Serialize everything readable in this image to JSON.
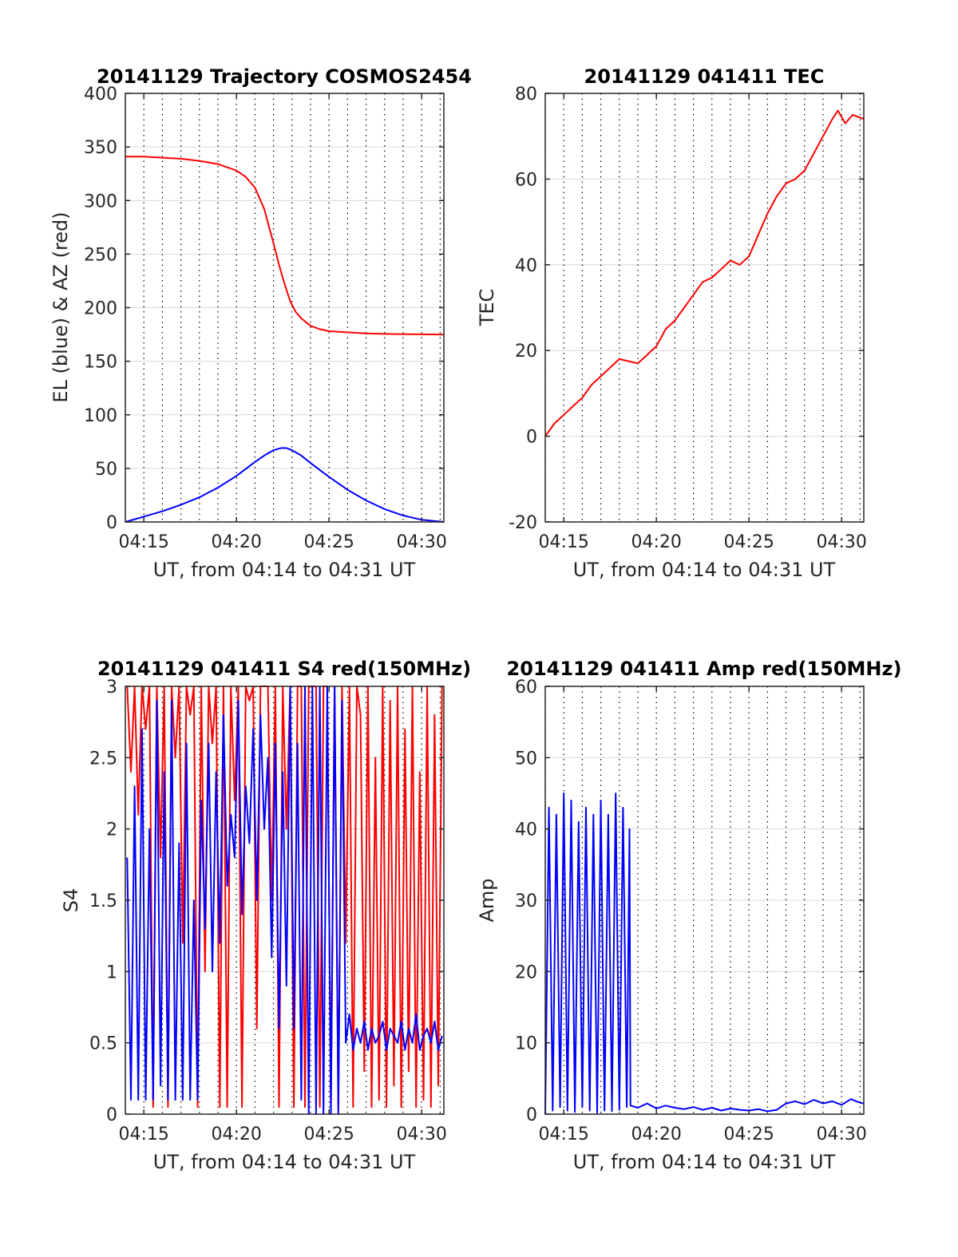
{
  "figure": {
    "background": "#ffffff",
    "colors": {
      "red": "#ff0000",
      "blue": "#0000ff",
      "grid": "#000000",
      "axis": "#262626"
    }
  },
  "chart_data": [
    {
      "id": "trajectory",
      "type": "line",
      "title": "20141129 Trajectory COSMOS2454",
      "xlabel": "UT, from 04:14 to 04:31 UT",
      "ylabel": "EL (blue) & AZ (red)",
      "xlim": [
        14.0,
        31.2
      ],
      "ylim": [
        0,
        400
      ],
      "xticks": [
        15,
        20,
        25,
        30
      ],
      "xticklabels": [
        "04:15",
        "04:20",
        "04:25",
        "04:30"
      ],
      "yticks": [
        0,
        50,
        100,
        150,
        200,
        250,
        300,
        350,
        400
      ],
      "yticklabels": [
        "0",
        "50",
        "100",
        "150",
        "200",
        "250",
        "300",
        "350",
        "400"
      ],
      "grid": "minute dotted vertical lines; horizontal gridlines at y ticks",
      "series": [
        {
          "color": "#ff0000",
          "x": [
            14.0,
            15.0,
            16.0,
            17.0,
            18.0,
            19.0,
            20.0,
            20.5,
            21.0,
            21.5,
            22.0,
            22.3,
            22.6,
            22.9,
            23.2,
            23.5,
            24.0,
            24.5,
            25.0,
            26.0,
            27.0,
            28.0,
            29.0,
            30.0,
            31.2
          ],
          "y": [
            341,
            341,
            340,
            339,
            337,
            334,
            328,
            322,
            312,
            292,
            260,
            240,
            222,
            206,
            196,
            190,
            183,
            180,
            178,
            177,
            176,
            175.5,
            175.3,
            175.1,
            175
          ]
        },
        {
          "color": "#0000ff",
          "x": [
            14.0,
            15.0,
            16.0,
            17.0,
            18.0,
            19.0,
            20.0,
            21.0,
            21.5,
            22.0,
            22.4,
            22.7,
            23.0,
            23.5,
            24.0,
            25.0,
            26.0,
            27.0,
            28.0,
            29.0,
            30.0,
            31.2
          ],
          "y": [
            0,
            5,
            10,
            16,
            23,
            32,
            43,
            56,
            62,
            67,
            69,
            69,
            67,
            62,
            55,
            42,
            30,
            20,
            12,
            6,
            2,
            0
          ]
        }
      ]
    },
    {
      "id": "tec",
      "type": "line",
      "title": "20141129 041411 TEC",
      "xlabel": "UT, from 04:14 to 04:31 UT",
      "ylabel": "TEC",
      "xlim": [
        14.0,
        31.2
      ],
      "ylim": [
        -20,
        80
      ],
      "xticks": [
        15,
        20,
        25,
        30
      ],
      "xticklabels": [
        "04:15",
        "04:20",
        "04:25",
        "04:30"
      ],
      "yticks": [
        -20,
        0,
        20,
        40,
        60,
        80
      ],
      "yticklabels": [
        "-20",
        "0",
        "20",
        "40",
        "60",
        "80"
      ],
      "grid": "minute dotted vertical lines; horizontal gridlines at y ticks",
      "series": [
        {
          "color": "#ff0000",
          "x": [
            14.0,
            14.5,
            15.0,
            15.5,
            16.0,
            16.5,
            17.0,
            17.5,
            18.0,
            18.5,
            19.0,
            19.5,
            20.0,
            20.5,
            21.0,
            21.5,
            22.0,
            22.5,
            23.0,
            23.5,
            24.0,
            24.5,
            25.0,
            25.5,
            26.0,
            26.5,
            27.0,
            27.5,
            28.0,
            28.5,
            29.0,
            29.5,
            29.8,
            30.2,
            30.6,
            31.2
          ],
          "y": [
            0,
            3,
            5,
            7,
            9,
            12,
            14,
            16,
            18,
            17.5,
            17,
            19,
            21,
            25,
            27,
            30,
            33,
            36,
            37,
            39,
            41,
            40,
            42,
            47,
            52,
            56,
            59,
            60,
            62,
            66,
            70,
            74,
            76,
            73,
            75,
            74
          ]
        }
      ]
    },
    {
      "id": "s4",
      "type": "line",
      "title": "20141129 041411 S4 red(150MHz)",
      "xlabel": "UT, from 04:14 to 04:31 UT",
      "ylabel": "S4",
      "xlim": [
        14.0,
        31.2
      ],
      "ylim": [
        0,
        3
      ],
      "xticks": [
        15,
        20,
        25,
        30
      ],
      "xticklabels": [
        "04:15",
        "04:20",
        "04:25",
        "04:30"
      ],
      "yticks": [
        0,
        0.5,
        1,
        1.5,
        2,
        2.5,
        3
      ],
      "yticklabels": [
        "0",
        "0.5",
        "1",
        "1.5",
        "2",
        "2.5",
        "3"
      ],
      "grid": "minute dotted vertical lines; horizontal gridlines at y ticks",
      "series": [
        {
          "color": "#ff0000",
          "x": [
            14.1,
            14.3,
            14.5,
            14.7,
            14.9,
            15.1,
            15.3,
            15.5,
            15.7,
            15.9,
            16.1,
            16.3,
            16.5,
            16.7,
            16.9,
            17.1,
            17.3,
            17.5,
            17.7,
            17.9,
            18.1,
            18.3,
            18.5,
            18.7,
            18.9,
            19.1,
            19.3,
            19.5,
            19.7,
            19.9,
            20.1,
            20.3,
            20.5,
            20.7,
            20.9,
            21.1,
            21.3,
            21.5,
            21.7,
            21.9,
            22.1,
            22.3,
            22.5,
            22.7,
            22.9,
            23.1,
            23.3,
            23.5,
            23.7,
            23.9,
            24.1,
            24.3,
            24.5,
            24.7,
            24.9,
            25.1,
            25.3,
            25.5,
            25.7,
            25.9,
            26.1,
            26.3,
            26.5,
            26.7,
            26.9,
            27.1,
            27.3,
            27.5,
            27.7,
            27.9,
            28.1,
            28.3,
            28.5,
            28.7,
            28.9,
            29.1,
            29.3,
            29.5,
            29.7,
            29.9,
            30.1,
            30.3,
            30.5,
            30.7,
            30.9,
            31.1
          ],
          "y": [
            3,
            2.4,
            3,
            2.1,
            3,
            2.7,
            3,
            0.05,
            3,
            1.8,
            3,
            0.05,
            3,
            2.5,
            3,
            1.2,
            3,
            2.8,
            3,
            0.05,
            3,
            1.0,
            3,
            2.6,
            3,
            0.05,
            3,
            0.05,
            3,
            2.2,
            3,
            0.05,
            3,
            2.9,
            3,
            0.6,
            3,
            3,
            3,
            1.5,
            3,
            0.05,
            3,
            2.0,
            3,
            0.05,
            3,
            3,
            0.05,
            3,
            3,
            3,
            0.05,
            3,
            3,
            0.05,
            3,
            0.05,
            3,
            1.2,
            3,
            0.05,
            3,
            2.8,
            0.3,
            3,
            0.05,
            2.5,
            0.1,
            3,
            0.05,
            2.9,
            0.2,
            3,
            0.05,
            2.7,
            0.3,
            3,
            0.05,
            2.4,
            0.1,
            3,
            0.05,
            2.8,
            0.2,
            3
          ]
        },
        {
          "color": "#0000ff",
          "x": [
            14.1,
            14.3,
            14.5,
            14.7,
            14.9,
            15.1,
            15.3,
            15.5,
            15.7,
            15.9,
            16.1,
            16.3,
            16.5,
            16.7,
            16.9,
            17.1,
            17.3,
            17.5,
            17.7,
            17.9,
            18.1,
            18.3,
            18.5,
            18.7,
            18.9,
            19.1,
            19.3,
            19.5,
            19.7,
            19.9,
            20.1,
            20.3,
            20.5,
            20.7,
            20.9,
            21.1,
            21.3,
            21.5,
            21.7,
            21.9,
            22.1,
            22.3,
            22.5,
            22.7,
            22.9,
            23.1,
            23.3,
            23.5,
            23.7,
            23.9,
            24.1,
            24.3,
            24.5,
            24.7,
            24.9,
            25.1,
            25.3,
            25.5,
            25.7,
            25.9,
            26.1,
            26.3,
            26.5,
            26.7,
            26.9,
            27.1,
            27.3,
            27.5,
            27.7,
            27.9,
            28.1,
            28.3,
            28.5,
            28.7,
            28.9,
            29.1,
            29.3,
            29.5,
            29.7,
            29.9,
            30.1,
            30.3,
            30.5,
            30.7,
            30.9,
            31.1
          ],
          "y": [
            1.8,
            0.1,
            2.3,
            0.1,
            2.7,
            0.1,
            2.0,
            0.1,
            2.9,
            0.2,
            2.4,
            0.1,
            2.9,
            0.1,
            1.9,
            0.1,
            2.6,
            0.1,
            1.5,
            0.1,
            2.2,
            1.3,
            2.6,
            1.0,
            2.4,
            1.2,
            2.8,
            1.6,
            2.1,
            1.8,
            2.9,
            1.4,
            2.3,
            1.9,
            2.7,
            1.5,
            2.8,
            2.0,
            2.5,
            1.1,
            2.6,
            0.6,
            2.4,
            0.9,
            3.0,
            0.6,
            2.6,
            0.1,
            3.0,
            0.0,
            3.0,
            0.0,
            3.0,
            0.0,
            3.0,
            0.0,
            3.0,
            0.0,
            2.9,
            0.5,
            0.7,
            0.45,
            0.6,
            0.5,
            0.65,
            0.45,
            0.6,
            0.5,
            0.55,
            0.65,
            0.45,
            0.6,
            0.55,
            0.5,
            0.65,
            0.45,
            0.6,
            0.5,
            0.7,
            0.45,
            0.55,
            0.6,
            0.5,
            0.65,
            0.45,
            0.55
          ]
        }
      ]
    },
    {
      "id": "amp",
      "type": "line",
      "title": "20141129 041411 Amp red(150MHz)",
      "xlabel": "UT, from 04:14 to 04:31 UT",
      "ylabel": "Amp",
      "xlim": [
        14.0,
        31.2
      ],
      "ylim": [
        0,
        60
      ],
      "xticks": [
        15,
        20,
        25,
        30
      ],
      "xticklabels": [
        "04:15",
        "04:20",
        "04:25",
        "04:30"
      ],
      "yticks": [
        0,
        10,
        20,
        30,
        40,
        50,
        60
      ],
      "yticklabels": [
        "0",
        "10",
        "20",
        "30",
        "40",
        "50",
        "60"
      ],
      "grid": "minute dotted vertical lines; horizontal gridlines at y ticks",
      "series": [
        {
          "color": "#0000ff",
          "x": [
            14.0,
            14.2,
            14.4,
            14.6,
            14.8,
            15.0,
            15.2,
            15.4,
            15.6,
            15.8,
            16.0,
            16.2,
            16.4,
            16.6,
            16.8,
            17.0,
            17.2,
            17.4,
            17.6,
            17.8,
            18.0,
            18.2,
            18.4,
            18.55,
            18.6,
            19.0,
            19.5,
            20.0,
            20.5,
            21.0,
            21.5,
            22.0,
            22.5,
            23.0,
            23.5,
            24.0,
            24.5,
            25.0,
            25.5,
            26.0,
            26.5,
            27.0,
            27.5,
            28.0,
            28.5,
            29.0,
            29.5,
            30.0,
            30.5,
            31.0,
            31.2
          ],
          "y": [
            0,
            43,
            0.5,
            42,
            1,
            45,
            0.5,
            44,
            0.3,
            41,
            1,
            43,
            0.5,
            42,
            0.2,
            44,
            0.5,
            42,
            0.4,
            45,
            0.6,
            43,
            1,
            40,
            1.2,
            0.9,
            1.5,
            0.8,
            1.2,
            0.9,
            0.7,
            1.0,
            0.6,
            0.9,
            0.5,
            0.8,
            0.6,
            0.5,
            0.7,
            0.4,
            0.6,
            1.5,
            1.8,
            1.4,
            2.0,
            1.5,
            1.8,
            1.3,
            2.1,
            1.6,
            1.5
          ]
        }
      ]
    }
  ]
}
